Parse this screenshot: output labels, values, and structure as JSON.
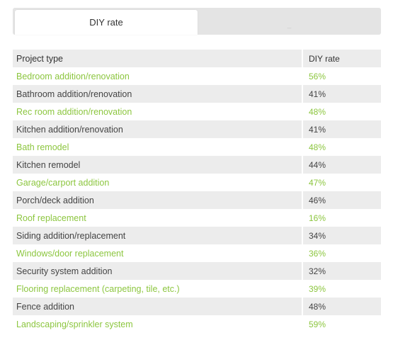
{
  "tabs": [
    {
      "label": "DIY rate",
      "active": true
    },
    {
      "label": "_",
      "active": false
    }
  ],
  "table": {
    "headers": [
      "Project type",
      "DIY rate"
    ],
    "rows": [
      {
        "project": "Bedroom addition/renovation",
        "rate": "56%"
      },
      {
        "project": "Bathroom addition/renovation",
        "rate": "41%"
      },
      {
        "project": "Rec room addition/renovation",
        "rate": "48%"
      },
      {
        "project": "Kitchen addition/renovation",
        "rate": "41%"
      },
      {
        "project": "Bath remodel",
        "rate": "48%"
      },
      {
        "project": "Kitchen remodel",
        "rate": "44%"
      },
      {
        "project": "Garage/carport addition",
        "rate": "47%"
      },
      {
        "project": "Porch/deck addition",
        "rate": "46%"
      },
      {
        "project": "Roof replacement",
        "rate": "16%"
      },
      {
        "project": "Siding addition/replacement",
        "rate": "34%"
      },
      {
        "project": "Windows/door replacement",
        "rate": "36%"
      },
      {
        "project": "Security system addition",
        "rate": "32%"
      },
      {
        "project": "Flooring replacement (carpeting, tile, etc.)",
        "rate": "39%"
      },
      {
        "project": "Fence addition",
        "rate": "48%"
      },
      {
        "project": "Landscaping/sprinkler system",
        "rate": "59%"
      }
    ]
  },
  "colors": {
    "accent_green": "#8cc63f",
    "dark_text": "#444444",
    "shade": "#ececec",
    "tabbar": "#e4e4e4"
  }
}
